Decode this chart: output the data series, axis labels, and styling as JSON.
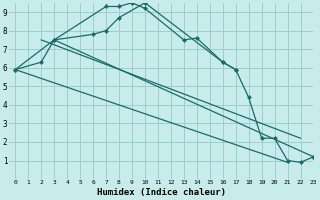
{
  "xlabel": "Humidex (Indice chaleur)",
  "background_color": "#c8ecec",
  "grid_color": "#9ecece",
  "line_color": "#1a6b6b",
  "xlim": [
    -0.5,
    23
  ],
  "ylim": [
    0,
    9.5
  ],
  "yticks": [
    1,
    2,
    3,
    4,
    5,
    6,
    7,
    8,
    9
  ],
  "xticks": [
    0,
    1,
    2,
    3,
    4,
    5,
    6,
    7,
    8,
    9,
    10,
    11,
    12,
    13,
    14,
    15,
    16,
    17,
    18,
    19,
    20,
    21,
    22,
    23
  ],
  "line1_x": [
    0,
    2,
    3,
    7,
    8,
    9,
    10,
    13,
    14,
    16,
    17
  ],
  "line1_y": [
    5.9,
    6.3,
    7.5,
    9.3,
    9.3,
    9.5,
    9.2,
    7.5,
    7.6,
    6.3,
    5.9
  ],
  "line2_x": [
    0,
    3,
    6,
    7,
    8,
    10,
    16,
    17,
    18,
    19,
    20,
    21,
    22,
    23
  ],
  "line2_y": [
    5.9,
    7.5,
    7.8,
    8.0,
    8.7,
    9.5,
    6.3,
    5.9,
    4.4,
    2.2,
    2.2,
    1.0,
    0.9,
    1.2
  ],
  "line3_x": [
    2,
    22
  ],
  "line3_y": [
    7.5,
    2.2
  ],
  "line4_x": [
    3,
    23
  ],
  "line4_y": [
    7.5,
    1.2
  ],
  "line5_x": [
    0,
    21
  ],
  "line5_y": [
    5.9,
    0.9
  ]
}
